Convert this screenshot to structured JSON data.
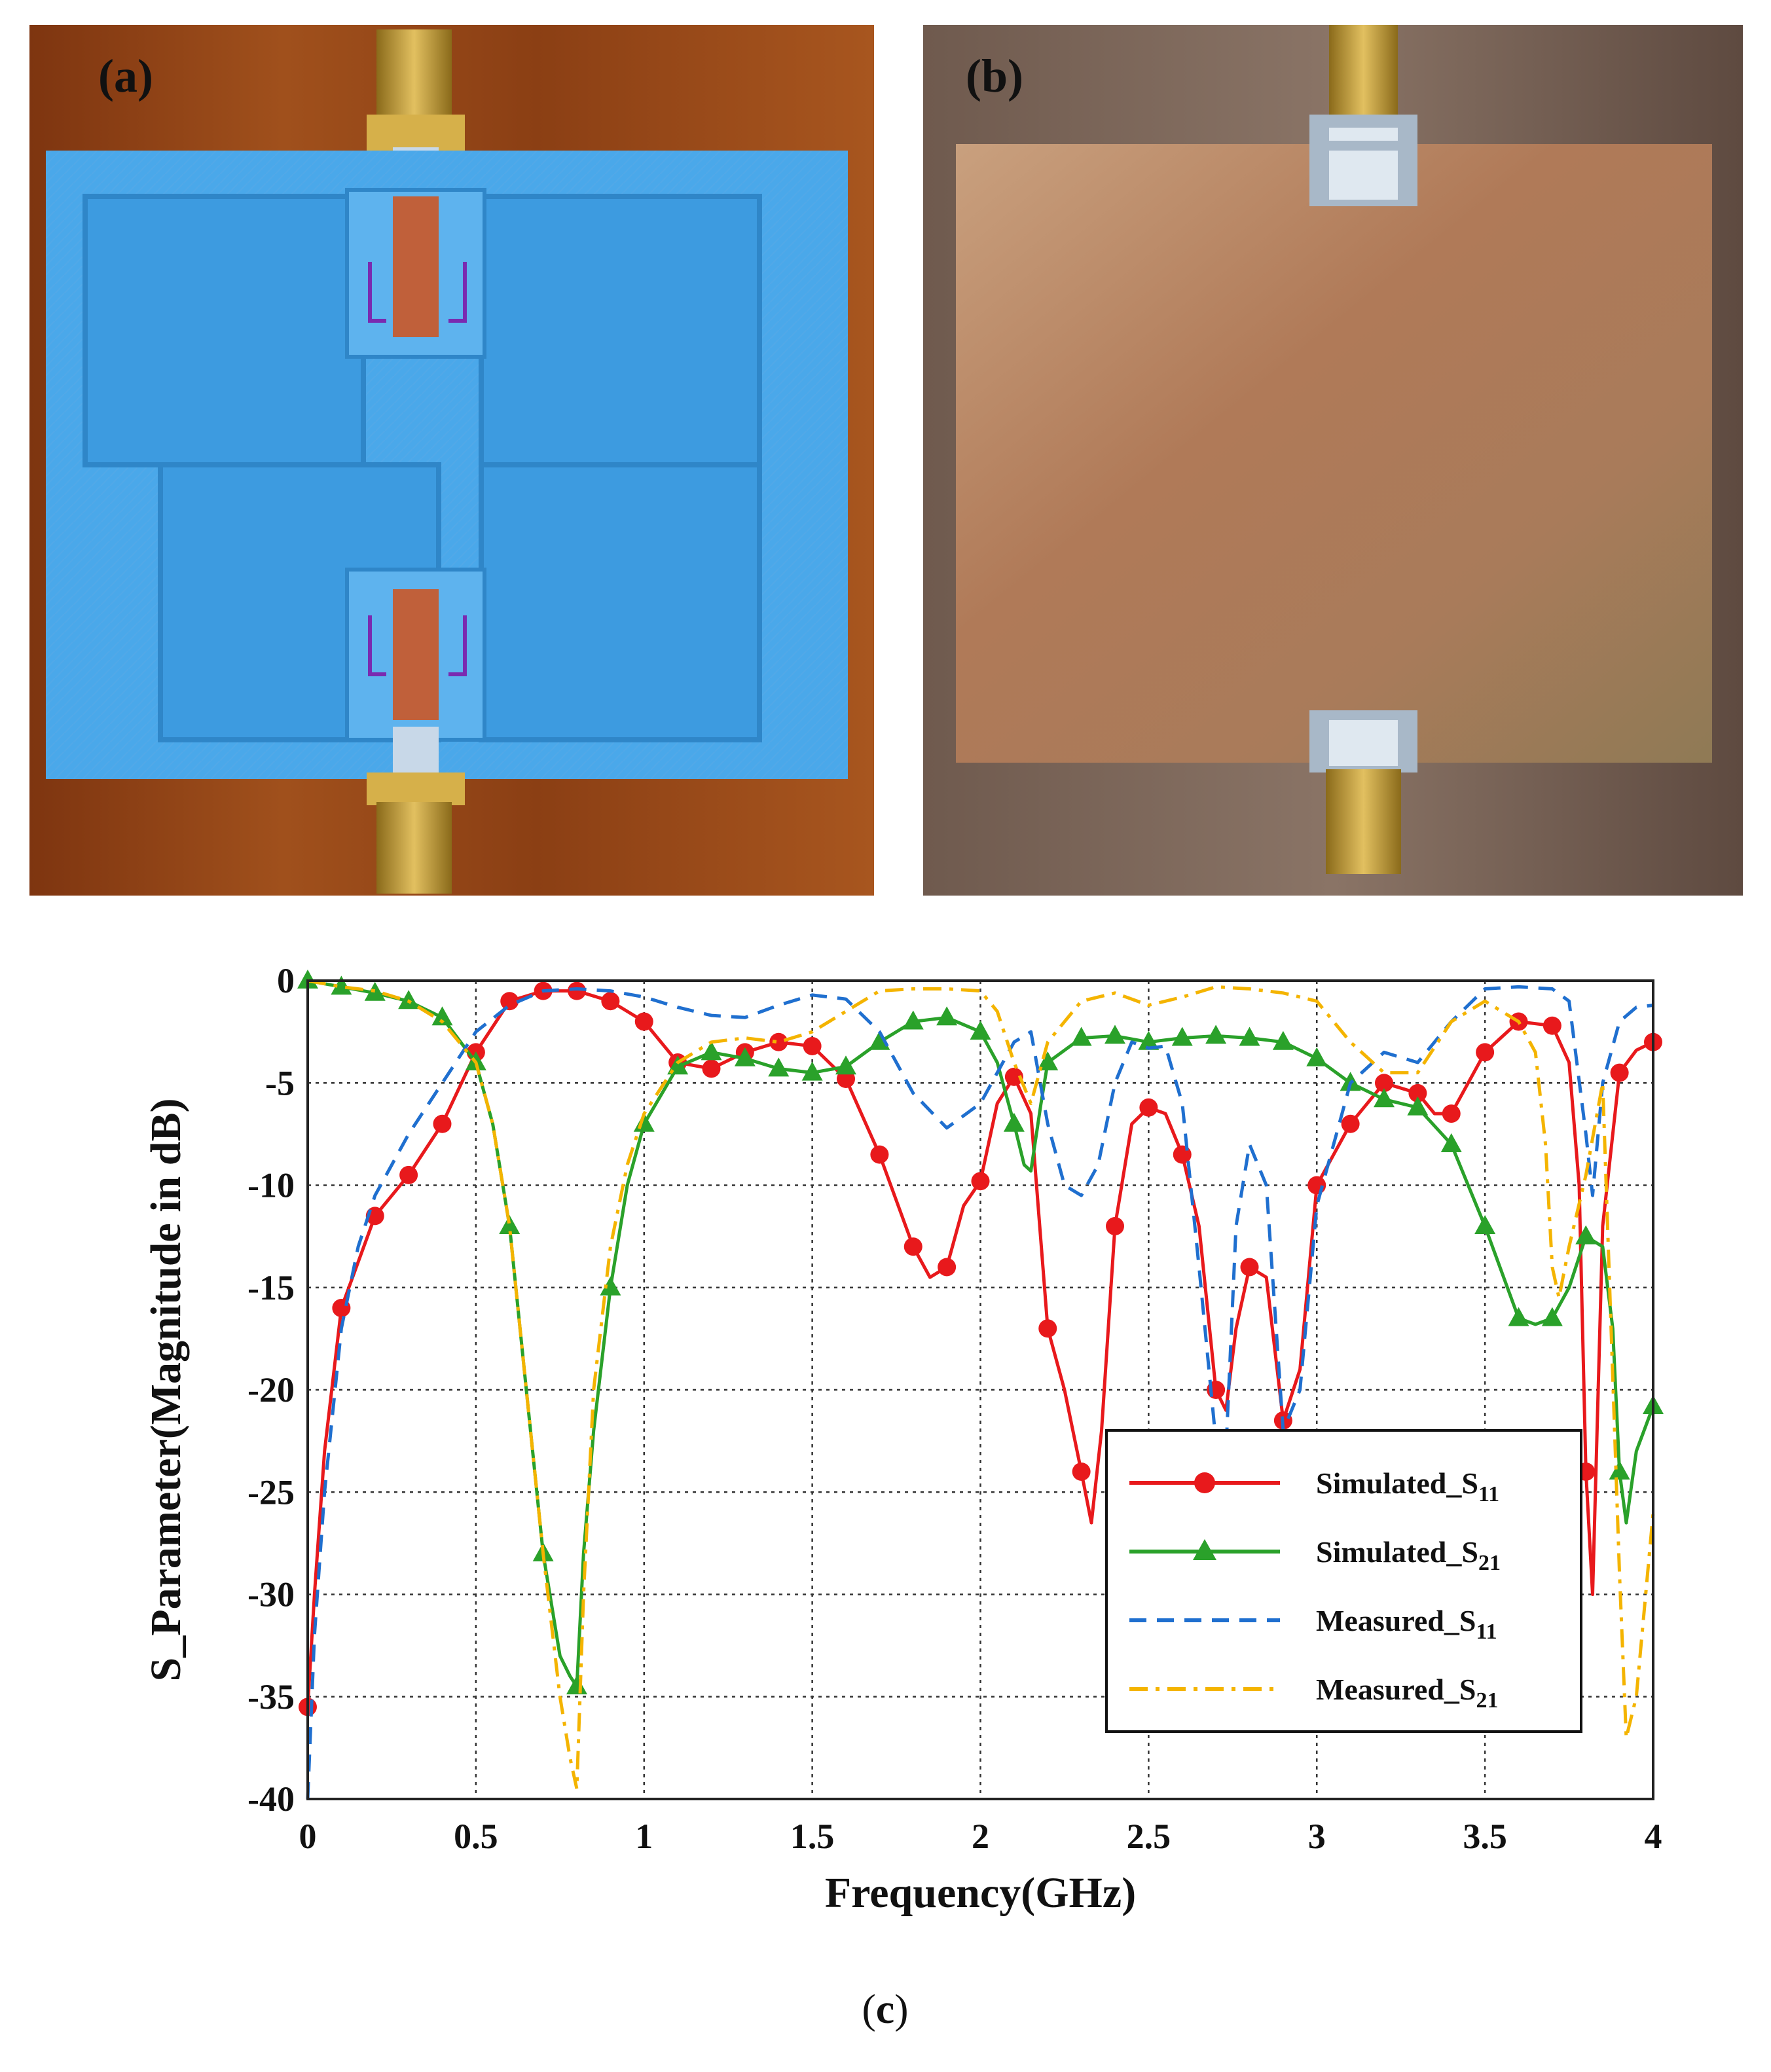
{
  "panels": {
    "a": {
      "label": "(a)"
    },
    "b": {
      "label": "(b)"
    },
    "c": {
      "caption_open": "(",
      "caption_letter": "c",
      "caption_close": ")"
    }
  },
  "colors": {
    "simulated_s11": "#e8191c",
    "simulated_s21": "#2aa12a",
    "measured_s11": "#1f6fcf",
    "measured_s21": "#f4b400",
    "substrate_blue": "#4aa8ea",
    "wood": "#9a4a1a",
    "copper": "#b98462"
  },
  "chart_data": {
    "type": "line",
    "xlabel": "Frequency(GHz)",
    "ylabel": "S_Parameter(Magnitude in dB)",
    "xlim": [
      0,
      4
    ],
    "ylim": [
      -40,
      0
    ],
    "xticks": [
      "0",
      "0.5",
      "1",
      "1.5",
      "2",
      "2.5",
      "3",
      "3.5",
      "4"
    ],
    "yticks": [
      "0",
      "-5",
      "-10",
      "-15",
      "-20",
      "-25",
      "-30",
      "-35",
      "-40"
    ],
    "grid": true,
    "legend_position": "bottom-right",
    "series": [
      {
        "name": "Simulated_S",
        "subscript": "11",
        "color_key": "simulated_s11",
        "style": "solid",
        "marker": "circle",
        "x": [
          0,
          0.02,
          0.05,
          0.1,
          0.2,
          0.3,
          0.4,
          0.5,
          0.6,
          0.7,
          0.8,
          0.9,
          1.0,
          1.1,
          1.2,
          1.3,
          1.4,
          1.5,
          1.6,
          1.7,
          1.8,
          1.85,
          1.9,
          1.95,
          2.0,
          2.05,
          2.1,
          2.15,
          2.2,
          2.25,
          2.3,
          2.33,
          2.36,
          2.4,
          2.45,
          2.5,
          2.55,
          2.6,
          2.65,
          2.7,
          2.73,
          2.76,
          2.8,
          2.85,
          2.9,
          2.95,
          3.0,
          3.1,
          3.2,
          3.3,
          3.35,
          3.4,
          3.5,
          3.6,
          3.7,
          3.75,
          3.78,
          3.8,
          3.82,
          3.85,
          3.9,
          3.95,
          4.0
        ],
        "y": [
          -35.5,
          -30,
          -23,
          -16,
          -11.5,
          -9.5,
          -7,
          -3.5,
          -1,
          -0.5,
          -0.5,
          -1,
          -2,
          -4,
          -4.3,
          -3.5,
          -3,
          -3.2,
          -4.8,
          -8.5,
          -13,
          -14.5,
          -14,
          -11,
          -9.8,
          -6,
          -4.7,
          -6.5,
          -17,
          -20,
          -24,
          -26.5,
          -22,
          -12,
          -7,
          -6.2,
          -6.5,
          -8.5,
          -12,
          -20,
          -21,
          -17,
          -14,
          -14.5,
          -21.5,
          -19,
          -10,
          -7,
          -5,
          -5.5,
          -6.5,
          -6.5,
          -3.5,
          -2,
          -2.2,
          -4,
          -10,
          -24,
          -30,
          -12,
          -4.5,
          -3.4,
          -3
        ]
      },
      {
        "name": "Simulated_S",
        "subscript": "21",
        "color_key": "simulated_s21",
        "style": "solid",
        "marker": "triangle",
        "x": [
          0,
          0.1,
          0.2,
          0.3,
          0.4,
          0.5,
          0.55,
          0.6,
          0.65,
          0.7,
          0.75,
          0.78,
          0.8,
          0.82,
          0.85,
          0.9,
          0.95,
          1.0,
          1.1,
          1.2,
          1.3,
          1.4,
          1.5,
          1.6,
          1.7,
          1.8,
          1.9,
          2.0,
          2.05,
          2.1,
          2.13,
          2.15,
          2.18,
          2.2,
          2.3,
          2.4,
          2.5,
          2.6,
          2.7,
          2.8,
          2.9,
          3.0,
          3.1,
          3.2,
          3.3,
          3.4,
          3.5,
          3.6,
          3.65,
          3.7,
          3.75,
          3.8,
          3.85,
          3.88,
          3.9,
          3.92,
          3.95,
          4.0
        ],
        "y": [
          0,
          -0.3,
          -0.6,
          -1,
          -1.8,
          -4,
          -7,
          -12,
          -20,
          -28,
          -33,
          -34,
          -34.5,
          -28,
          -22,
          -15,
          -10,
          -7,
          -4.2,
          -3.5,
          -3.8,
          -4.3,
          -4.5,
          -4.2,
          -3,
          -2,
          -1.8,
          -2.5,
          -4,
          -7,
          -9,
          -9.3,
          -6,
          -4,
          -2.8,
          -2.7,
          -3,
          -2.8,
          -2.7,
          -2.8,
          -3,
          -3.8,
          -5,
          -5.8,
          -6.2,
          -8,
          -12,
          -16.5,
          -16.8,
          -16.5,
          -15,
          -12.5,
          -13,
          -17,
          -24,
          -26.5,
          -23,
          -20.8
        ]
      },
      {
        "name": "Measured_S",
        "subscript": "11",
        "color_key": "measured_s11",
        "style": "dashed",
        "marker": "none",
        "x": [
          0,
          0.02,
          0.05,
          0.1,
          0.15,
          0.2,
          0.3,
          0.4,
          0.5,
          0.6,
          0.7,
          0.8,
          0.9,
          1.0,
          1.1,
          1.2,
          1.3,
          1.4,
          1.5,
          1.6,
          1.7,
          1.8,
          1.9,
          2.0,
          2.05,
          2.1,
          2.15,
          2.2,
          2.25,
          2.3,
          2.35,
          2.4,
          2.45,
          2.5,
          2.55,
          2.6,
          2.65,
          2.7,
          2.73,
          2.76,
          2.8,
          2.85,
          2.9,
          2.95,
          3.0,
          3.1,
          3.2,
          3.3,
          3.4,
          3.5,
          3.6,
          3.7,
          3.75,
          3.8,
          3.82,
          3.85,
          3.9,
          3.95,
          4.0
        ],
        "y": [
          -40,
          -32,
          -25,
          -17,
          -13,
          -10.5,
          -7.5,
          -5,
          -2.5,
          -1.2,
          -0.5,
          -0.4,
          -0.5,
          -0.8,
          -1.3,
          -1.7,
          -1.8,
          -1.2,
          -0.7,
          -0.9,
          -2.5,
          -5.5,
          -7.2,
          -6,
          -4.5,
          -3,
          -2.5,
          -7,
          -10,
          -10.5,
          -9,
          -5,
          -3,
          -3.3,
          -3.2,
          -6,
          -14,
          -22.5,
          -23,
          -12,
          -8,
          -10,
          -22,
          -20,
          -11,
          -5,
          -3.5,
          -4,
          -2,
          -0.4,
          -0.3,
          -0.4,
          -1,
          -7.5,
          -10.5,
          -5,
          -2,
          -1.3,
          -1.2
        ]
      },
      {
        "name": "Measured_S",
        "subscript": "21",
        "color_key": "measured_s21",
        "style": "dashdot",
        "marker": "none",
        "x": [
          0,
          0.1,
          0.2,
          0.3,
          0.4,
          0.5,
          0.55,
          0.6,
          0.65,
          0.7,
          0.75,
          0.78,
          0.8,
          0.82,
          0.85,
          0.9,
          0.95,
          1.0,
          1.1,
          1.2,
          1.3,
          1.4,
          1.5,
          1.6,
          1.7,
          1.8,
          1.9,
          2.0,
          2.05,
          2.1,
          2.15,
          2.2,
          2.3,
          2.4,
          2.5,
          2.6,
          2.7,
          2.8,
          2.9,
          3.0,
          3.1,
          3.2,
          3.3,
          3.4,
          3.5,
          3.6,
          3.65,
          3.68,
          3.7,
          3.72,
          3.75,
          3.8,
          3.85,
          3.9,
          3.92,
          3.95,
          4.0
        ],
        "y": [
          0,
          -0.3,
          -0.5,
          -1,
          -2,
          -4,
          -7,
          -12,
          -20,
          -28,
          -35,
          -38,
          -39.5,
          -30,
          -20,
          -13,
          -9,
          -6.5,
          -4,
          -3,
          -2.8,
          -3,
          -2.5,
          -1.5,
          -0.5,
          -0.4,
          -0.4,
          -0.5,
          -1.5,
          -4,
          -6,
          -3,
          -1,
          -0.6,
          -1.2,
          -0.8,
          -0.3,
          -0.4,
          -0.6,
          -1,
          -3,
          -4.5,
          -4.5,
          -2,
          -1,
          -2,
          -3.5,
          -8,
          -14,
          -15.5,
          -13,
          -9.5,
          -5,
          -29,
          -37,
          -35,
          -26
        ]
      }
    ]
  }
}
